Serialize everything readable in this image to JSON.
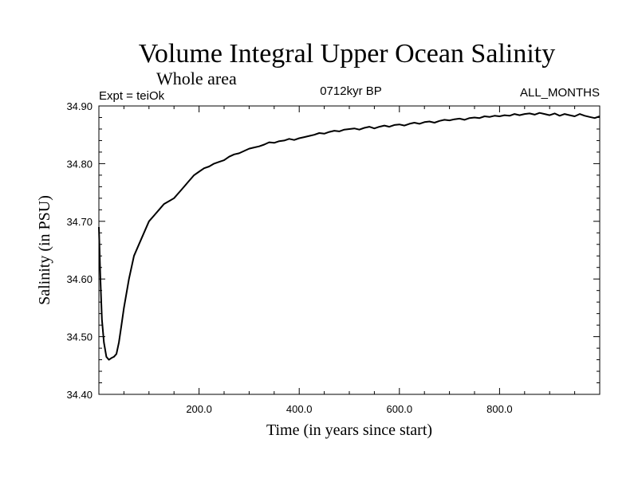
{
  "chart_data": {
    "type": "line",
    "title": "Volume Integral Upper Ocean Salinity",
    "subtitle": "Whole area",
    "annotations": {
      "left": "Expt = teiOk",
      "center": "0712kyr BP",
      "right": "ALL_MONTHS"
    },
    "xlabel": "Time (in years since start)",
    "ylabel": "Salinity (in PSU)",
    "xlim": [
      0,
      1000
    ],
    "ylim": [
      34.4,
      34.9
    ],
    "x_ticks": [
      200,
      400,
      600,
      800
    ],
    "x_tick_labels": [
      "200.0",
      "400.0",
      "600.0",
      "800.0"
    ],
    "y_ticks": [
      34.4,
      34.5,
      34.6,
      34.7,
      34.8,
      34.9
    ],
    "y_tick_labels": [
      "34.40",
      "34.50",
      "34.60",
      "34.70",
      "34.80",
      "34.90"
    ],
    "grid": false,
    "series": [
      {
        "name": "salinity",
        "x": [
          0,
          3,
          6,
          10,
          15,
          20,
          25,
          30,
          35,
          40,
          45,
          50,
          60,
          70,
          80,
          90,
          100,
          110,
          120,
          130,
          140,
          150,
          160,
          170,
          180,
          190,
          200,
          210,
          220,
          230,
          240,
          250,
          260,
          270,
          280,
          290,
          300,
          310,
          320,
          330,
          340,
          350,
          360,
          370,
          380,
          390,
          400,
          410,
          420,
          430,
          440,
          450,
          460,
          470,
          480,
          490,
          500,
          510,
          520,
          530,
          540,
          550,
          560,
          570,
          580,
          590,
          600,
          610,
          620,
          630,
          640,
          650,
          660,
          670,
          680,
          690,
          700,
          710,
          720,
          730,
          740,
          750,
          760,
          770,
          780,
          790,
          800,
          810,
          820,
          830,
          840,
          850,
          860,
          870,
          880,
          890,
          900,
          910,
          920,
          930,
          940,
          950,
          960,
          970,
          980,
          990,
          1000
        ],
        "values": [
          34.69,
          34.6,
          34.53,
          34.49,
          34.465,
          34.46,
          34.463,
          34.465,
          34.47,
          34.49,
          34.52,
          34.55,
          34.6,
          34.64,
          34.66,
          34.68,
          34.7,
          34.71,
          34.72,
          34.73,
          34.735,
          34.74,
          34.75,
          34.76,
          34.77,
          34.78,
          34.786,
          34.792,
          34.795,
          34.8,
          34.803,
          34.806,
          34.812,
          34.816,
          34.818,
          34.822,
          34.826,
          34.828,
          34.83,
          34.833,
          34.837,
          34.836,
          34.839,
          34.84,
          34.843,
          34.841,
          34.844,
          34.846,
          34.848,
          34.85,
          34.853,
          34.852,
          34.855,
          34.857,
          34.856,
          34.859,
          34.86,
          34.861,
          34.859,
          34.862,
          34.864,
          34.861,
          34.864,
          34.866,
          34.864,
          34.867,
          34.868,
          34.866,
          34.869,
          34.871,
          34.869,
          34.872,
          34.873,
          34.871,
          34.874,
          34.876,
          34.875,
          34.877,
          34.878,
          34.876,
          34.879,
          34.88,
          34.879,
          34.882,
          34.881,
          34.883,
          34.882,
          34.884,
          34.883,
          34.886,
          34.884,
          34.886,
          34.887,
          34.885,
          34.888,
          34.886,
          34.884,
          34.887,
          34.883,
          34.886,
          34.884,
          34.882,
          34.886,
          34.883,
          34.881,
          34.879,
          34.882
        ]
      }
    ]
  }
}
